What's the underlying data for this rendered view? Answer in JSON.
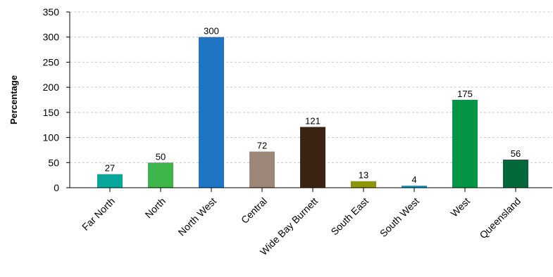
{
  "chart_data": {
    "type": "bar",
    "title": "",
    "xlabel": "",
    "ylabel": "Percentage",
    "ylim": [
      0,
      350
    ],
    "yticks": [
      0,
      50,
      100,
      150,
      200,
      250,
      300,
      350
    ],
    "grid": true,
    "categories": [
      "Far North",
      "North",
      "North West",
      "Central",
      "Wide Bay Burnett",
      "South East",
      "South West",
      "West",
      "Queensland"
    ],
    "values": [
      27,
      50,
      300,
      72,
      121,
      13,
      4,
      175,
      56
    ],
    "data_labels": [
      "27",
      "50",
      "300",
      "72",
      "121",
      "13",
      "4",
      "175",
      "56"
    ],
    "colors": [
      "#0aa69b",
      "#3db54a",
      "#1f75c4",
      "#9c8677",
      "#3b2314",
      "#8f950b",
      "#1a91b5",
      "#069447",
      "#05683a"
    ]
  }
}
